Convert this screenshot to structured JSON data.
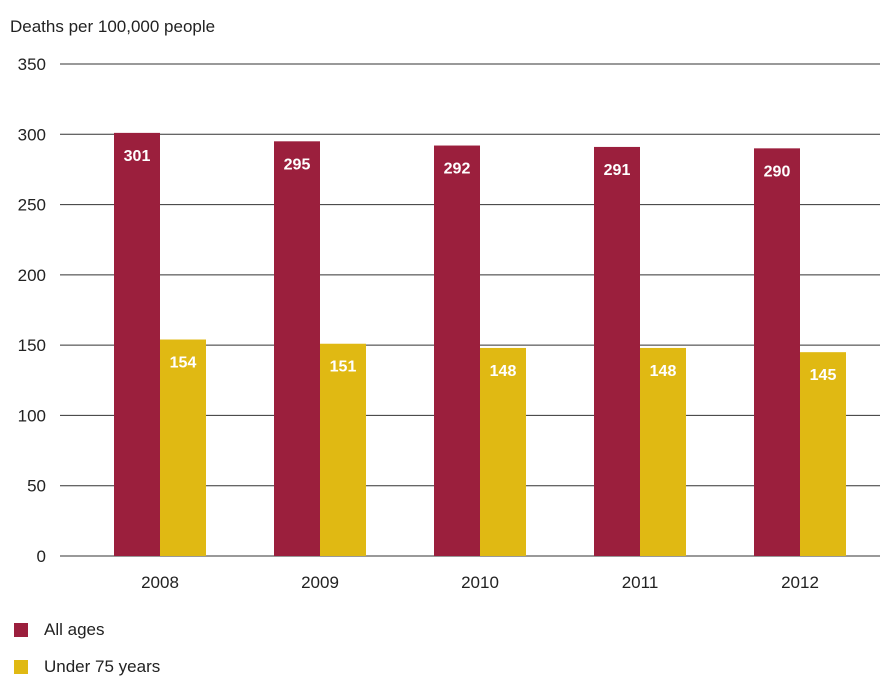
{
  "chart_data": {
    "type": "bar",
    "title": "",
    "ylabel": "Deaths per 100,000 people",
    "xlabel": "",
    "categories": [
      "2008",
      "2009",
      "2010",
      "2011",
      "2012"
    ],
    "series": [
      {
        "name": "All ages",
        "values": [
          301,
          295,
          292,
          291,
          290
        ],
        "color": "#9b1f3d"
      },
      {
        "name": "Under 75 years",
        "values": [
          154,
          151,
          148,
          148,
          145
        ],
        "color": "#e0b913"
      }
    ],
    "ylim": [
      0,
      350
    ],
    "yticks": [
      0,
      50,
      100,
      150,
      200,
      250,
      300,
      350
    ],
    "grid": true,
    "legend_position": "bottom-left"
  }
}
